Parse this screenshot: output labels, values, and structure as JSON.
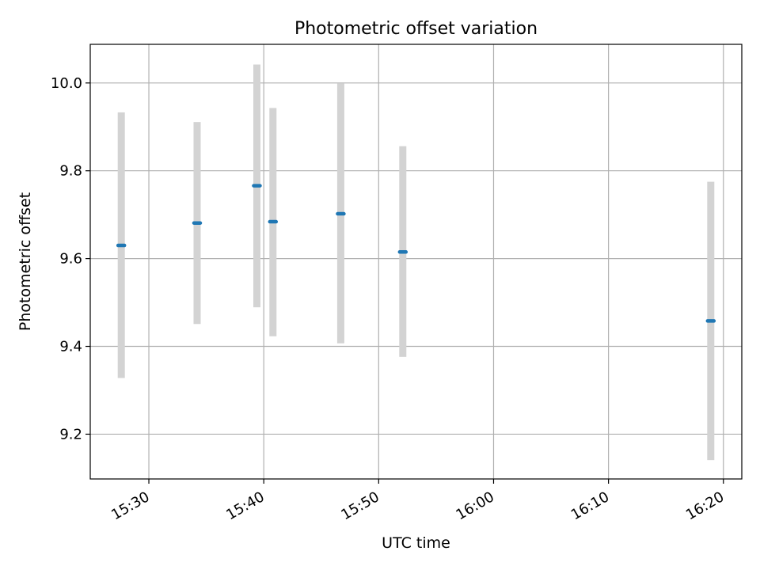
{
  "chart_data": {
    "type": "scatter",
    "title": "Photometric offset variation",
    "xlabel": "UTC time",
    "ylabel": "Photometric offset",
    "x_ticks": [
      "15:30",
      "15:40",
      "15:50",
      "16:00",
      "16:10",
      "16:20"
    ],
    "y_ticks": [
      "9.2",
      "9.4",
      "9.6",
      "9.8",
      "10.0"
    ],
    "xlim": [
      "15:24:54",
      "16:21:36"
    ],
    "ylim": [
      9.098,
      10.088
    ],
    "grid": true,
    "points": [
      {
        "x": "15:27:36",
        "y": 9.63,
        "yerr_low": 9.328,
        "yerr_high": 9.933
      },
      {
        "x": "15:34:12",
        "y": 9.681,
        "yerr_low": 9.451,
        "yerr_high": 9.911
      },
      {
        "x": "15:39:24",
        "y": 9.766,
        "yerr_low": 9.489,
        "yerr_high": 10.042
      },
      {
        "x": "15:40:48",
        "y": 9.684,
        "yerr_low": 9.423,
        "yerr_high": 9.943
      },
      {
        "x": "15:46:42",
        "y": 9.702,
        "yerr_low": 9.407,
        "yerr_high": 9.999
      },
      {
        "x": "15:52:06",
        "y": 9.615,
        "yerr_low": 9.376,
        "yerr_high": 9.856
      },
      {
        "x": "16:18:54",
        "y": 9.458,
        "yerr_low": 9.141,
        "yerr_high": 9.775
      }
    ],
    "colors": {
      "point": "#1f77b4",
      "errorbar": "#d3d3d3",
      "grid": "#b0b0b0"
    }
  }
}
